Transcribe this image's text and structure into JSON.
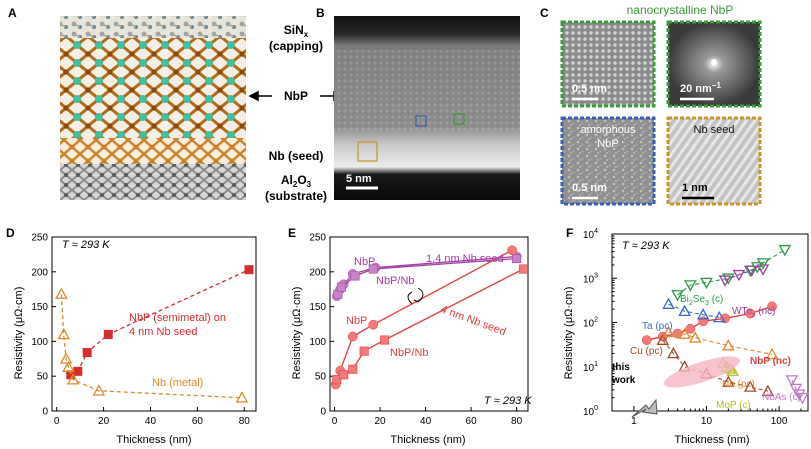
{
  "panels": {
    "A": {
      "label": "A",
      "capping": "SiN",
      "capping_sub": "x",
      "capping2": "(capping)",
      "middle": "NbP",
      "seed": "Nb (seed)",
      "substrate": "Al",
      "substrate_sub1": "2",
      "substrate_mid": "O",
      "substrate_sub2": "3",
      "substrate2": "(substrate)"
    },
    "B": {
      "label": "B",
      "scale": "5 nm"
    },
    "C": {
      "label": "C",
      "title": "nanocrystalline NbP",
      "tl_scale": "0.5 nm",
      "tr_scale": "20 nm",
      "tr_sup": "−1",
      "bl_title1": "amorphous",
      "bl_title2": "NbP",
      "bl_scale": "0.5 nm",
      "br_title": "Nb seed",
      "br_scale": "1 nm",
      "colors": {
        "green": "#3a9a3a",
        "blue": "#3a5fb0",
        "gold": "#c8952a"
      }
    },
    "D": {
      "label": "D",
      "temp": "T ≈ 293 K",
      "ann1": "NbP (semimetal) on",
      "ann2": "4 nm Nb seed",
      "ann3": "Nb (metal)",
      "xlabel": "Thickness (nm)",
      "ylabel": "Resistivity (μΩ·cm)",
      "xticks": [
        "0",
        "20",
        "40",
        "60",
        "80"
      ],
      "yticks": [
        "0",
        "50",
        "100",
        "150",
        "200",
        "250"
      ]
    },
    "E": {
      "label": "E",
      "temp": "T ≈ 293 K",
      "ann_nbp_top": "NbP",
      "ann_nbpnb_top": "NbP/Nb",
      "ann_14": "1.4 nm Nb seed",
      "ann_nbp_bot": "NbP",
      "ann_nbpnb_bot": "NbP/Nb",
      "ann_4": "4 nm Nb seed",
      "xlabel": "Thickness (nm)",
      "ylabel": "Resistivity (μΩ·cm)",
      "xticks": [
        "0",
        "20",
        "40",
        "60",
        "80"
      ],
      "yticks": [
        "0",
        "50",
        "100",
        "150",
        "200",
        "250"
      ]
    },
    "F": {
      "label": "F",
      "temp": "T ≈ 293 K",
      "bi": "Bi",
      "bi_sub1": "2",
      "bi_mid": "Se",
      "bi_sub2": "3",
      "bi_tail": " (c)",
      "wte": "WTe",
      "wte_sub": "x",
      "wte_tail": " (nc)",
      "ta": "Ta (pc)",
      "cu": "Cu (pc)",
      "this1": "this",
      "this2": "work",
      "nbp": "NbP (nc)",
      "nb": "Nb (pc)",
      "mop": "MoP (c)",
      "nbas": "NbAs (c)",
      "xlabel": "Thickness (nm)",
      "ylabel": "Resistivity (μΩ·cm)",
      "xticks": [
        "1",
        "10",
        "100"
      ],
      "ytick_mantissa": "10",
      "ytick_exps": [
        "0",
        "1",
        "2",
        "3",
        "4"
      ]
    }
  },
  "chart_data": [
    {
      "panel": "D",
      "type": "scatter",
      "xlabel": "Thickness (nm)",
      "ylabel": "Resistivity (μΩ·cm)",
      "xlim": [
        -2,
        85
      ],
      "ylim": [
        0,
        250
      ],
      "grid": false,
      "series": [
        {
          "name": "NbP (semimetal) on 4 nm Nb seed",
          "color": "#d62c2c",
          "marker": "square",
          "line": "dashed",
          "x": [
            6,
            9,
            13,
            22,
            82
          ],
          "y": [
            52,
            57,
            84,
            110,
            203
          ]
        },
        {
          "name": "Nb (metal)",
          "color": "#e08a2a",
          "marker": "triangle-open",
          "line": "dashed",
          "x": [
            2,
            3,
            4,
            5,
            7,
            18,
            79
          ],
          "y": [
            168,
            110,
            75,
            63,
            45,
            29,
            19
          ]
        }
      ]
    },
    {
      "panel": "E",
      "type": "line",
      "xlabel": "Thickness (nm)",
      "ylabel": "Resistivity (μΩ·cm)",
      "xlim": [
        -2,
        85
      ],
      "ylim": [
        0,
        250
      ],
      "grid": false,
      "series": [
        {
          "name": "NbP",
          "color": "#a33fa3",
          "marker": "circle",
          "x": [
            1,
            2.5,
            4,
            8,
            18,
            80
          ],
          "y": [
            165,
            175,
            182,
            197,
            206,
            222
          ]
        },
        {
          "name": "NbP/Nb",
          "color": "#a33fa3",
          "marker": "square",
          "x": [
            1.5,
            3,
            9,
            17,
            80
          ],
          "y": [
            168,
            178,
            194,
            204,
            219
          ]
        },
        {
          "name": "NbP",
          "color": "#e63c3c",
          "marker": "circle",
          "x": [
            0.5,
            2.5,
            8,
            17,
            78
          ],
          "y": [
            38,
            58,
            107,
            124,
            231
          ]
        },
        {
          "name": "NbP/Nb",
          "color": "#e63c3c",
          "marker": "square",
          "x": [
            1,
            4,
            8,
            13,
            22,
            83
          ],
          "y": [
            45,
            52,
            60,
            86,
            102,
            204
          ]
        }
      ]
    },
    {
      "panel": "F",
      "type": "scatter",
      "xlabel": "Thickness (nm)",
      "ylabel": "Resistivity (μΩ·cm)",
      "xscale": "log",
      "yscale": "log",
      "xlim": [
        0.5,
        250
      ],
      "ylim": [
        1,
        10000
      ],
      "grid": false,
      "series": [
        {
          "name": "NbP (nc)",
          "color": "#e63c3c",
          "marker": "circle",
          "x": [
            1.5,
            2.5,
            4,
            6,
            9,
            18,
            40,
            80
          ],
          "y": [
            40,
            48,
            56,
            72,
            107,
            124,
            160,
            231
          ]
        },
        {
          "name": "Bi2Se3 (c)",
          "color": "#2a9a4a",
          "marker": "triangle-down-open",
          "x": [
            4,
            6,
            10,
            20,
            40,
            50,
            60,
            120
          ],
          "y": [
            420,
            700,
            800,
            1000,
            1500,
            1800,
            2200,
            4400
          ]
        },
        {
          "name": "WTex (nc)",
          "color": "#9a3fa0",
          "marker": "triangle-down-open",
          "x": [
            18,
            28,
            42,
            60
          ],
          "y": [
            900,
            1200,
            1500,
            1600
          ]
        },
        {
          "name": "Ta (pc)",
          "color": "#3a6ac8",
          "marker": "triangle-open",
          "x": [
            3,
            5,
            9,
            15
          ],
          "y": [
            260,
            180,
            150,
            130
          ]
        },
        {
          "name": "Cu (pc)",
          "color": "#a34a2a",
          "marker": "triangle-open",
          "x": [
            2.5,
            3.5,
            5,
            10,
            20,
            40,
            70
          ],
          "y": [
            40,
            20,
            10,
            7,
            4.5,
            3.5,
            2.8
          ]
        },
        {
          "name": "Nb (pc)",
          "color": "#e08a2a",
          "marker": "triangle-open",
          "x": [
            3,
            5,
            7,
            20,
            80
          ],
          "y": [
            60,
            55,
            45,
            30,
            19
          ]
        },
        {
          "name": "MoP (c)",
          "color": "#b8b820",
          "marker": "triangle-open",
          "x": [
            17,
            19,
            21,
            23
          ],
          "y": [
            12,
            10,
            9,
            8
          ]
        },
        {
          "name": "NbAs (c)",
          "color": "#c07ac8",
          "marker": "triangle-down-open",
          "x": [
            150,
            170,
            190,
            210
          ],
          "y": [
            5,
            3.2,
            2.4,
            2
          ]
        }
      ]
    }
  ]
}
